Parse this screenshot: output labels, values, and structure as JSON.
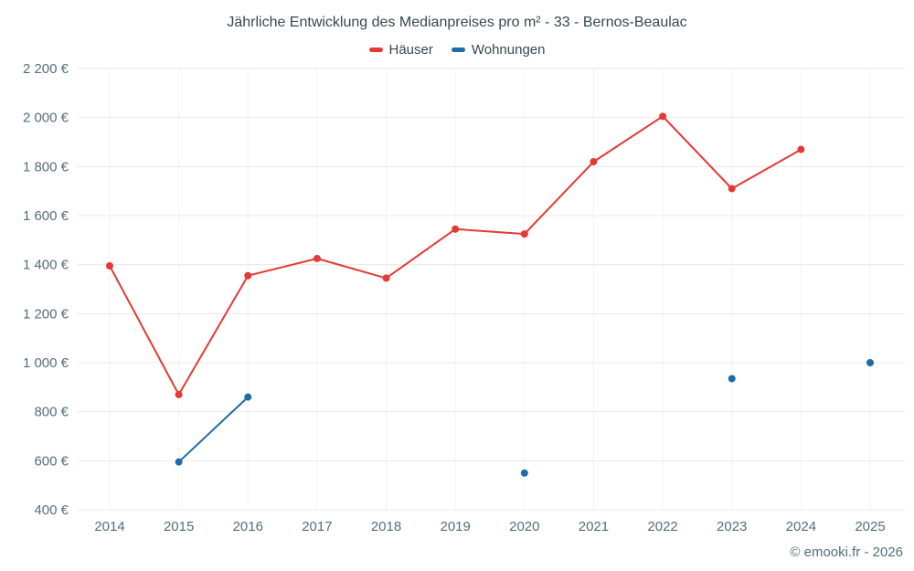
{
  "page": {
    "attribution": "© emooki.fr - 2026"
  },
  "chart_data": {
    "type": "line",
    "title": "Jährliche Entwicklung des Medianpreises pro m² - 33 - Bernos-Beaulac",
    "categories": [
      "2014",
      "2015",
      "2016",
      "2017",
      "2018",
      "2019",
      "2020",
      "2021",
      "2022",
      "2023",
      "2024",
      "2025"
    ],
    "series": [
      {
        "name": "Häuser",
        "color": "#e53935",
        "values": [
          1395,
          870,
          1355,
          1425,
          1345,
          1545,
          1525,
          1820,
          2005,
          1710,
          1870,
          null
        ]
      },
      {
        "name": "Wohnungen",
        "color": "#1b6ca8",
        "values": [
          null,
          595,
          860,
          null,
          null,
          null,
          550,
          null,
          null,
          935,
          null,
          1000
        ]
      }
    ],
    "xlabel": "",
    "ylabel": "",
    "ylim": [
      400,
      2200
    ],
    "ytick_step": 200,
    "ytick_suffix": " €",
    "grid": true,
    "legend_position": "top"
  }
}
